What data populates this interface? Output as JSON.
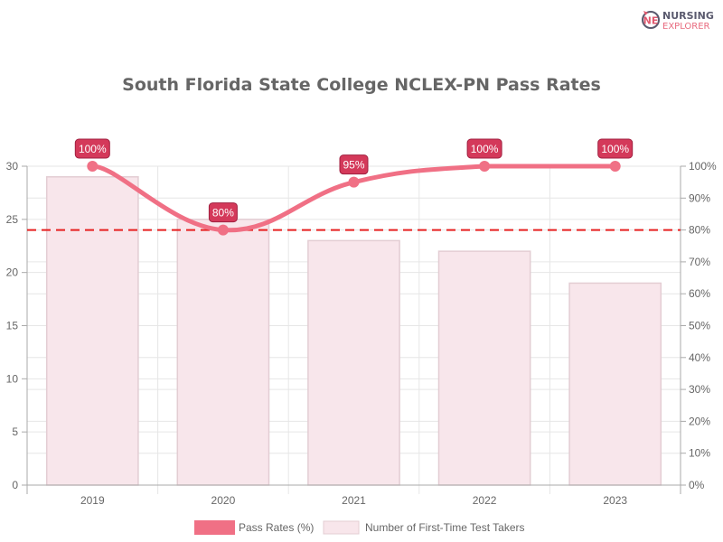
{
  "logo": {
    "line1": "NURSING",
    "line2": "EXPLORER",
    "colors": {
      "line1": "#5a5a6e",
      "line2": "#e86a7e",
      "mark": "#e05a70"
    }
  },
  "colors": {
    "line": "#f07085",
    "bar_fill": "#f8e6eb",
    "bar_border": "#e3cdd3",
    "label_bg": "#d4395a",
    "label_border": "#a02040",
    "threshold": "#e62020",
    "grid": "#e6e6e6",
    "axis": "#aaaaaa",
    "text": "#666666"
  },
  "chart_data": {
    "type": "bar+line",
    "title": "South Florida State College NCLEX-PN Pass Rates",
    "categories": [
      "2019",
      "2020",
      "2021",
      "2022",
      "2023"
    ],
    "series": [
      {
        "name": "Pass Rates (%)",
        "type": "line",
        "axis": "right",
        "values": [
          100,
          80,
          95,
          100,
          100
        ],
        "labels": [
          "100%",
          "80%",
          "95%",
          "100%",
          "100%"
        ]
      },
      {
        "name": "Number of First-Time Test Takers",
        "type": "bar",
        "axis": "left",
        "values": [
          29,
          25,
          23,
          22,
          19
        ]
      }
    ],
    "y_left": {
      "min": 0,
      "max": 30,
      "ticks": [
        "0",
        "5",
        "10",
        "15",
        "20",
        "25",
        "30"
      ]
    },
    "y_right": {
      "min": 0,
      "max": 100,
      "ticks": [
        "0%",
        "10%",
        "20%",
        "30%",
        "40%",
        "50%",
        "60%",
        "70%",
        "80%",
        "90%",
        "100%"
      ]
    },
    "threshold": {
      "value": 80,
      "axis": "right",
      "style": "dashed"
    },
    "xlabel": "",
    "ylabel": "",
    "grid": true,
    "legend_position": "bottom"
  }
}
